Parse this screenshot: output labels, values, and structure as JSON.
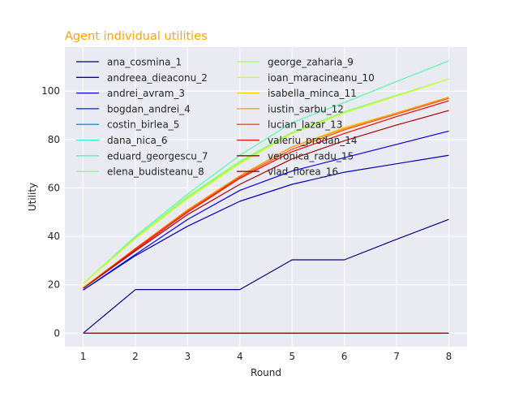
{
  "chart_data": {
    "type": "line",
    "title": "Agent individual utilities",
    "xlabel": "Round",
    "ylabel": "Utility",
    "x": [
      1,
      2,
      3,
      4,
      5,
      6,
      7,
      8
    ],
    "xlim": [
      0.65,
      8.35
    ],
    "ylim": [
      -5.6,
      118.2
    ],
    "xticks": [
      1,
      2,
      3,
      4,
      5,
      6,
      7,
      8
    ],
    "yticks": [
      0,
      20,
      40,
      60,
      80,
      100
    ],
    "grid": true,
    "legend_placement": "top-left",
    "legend_columns": 2,
    "colors": {
      "title": "#ffa500",
      "background": "#eaeaf2",
      "grid": "#ffffff",
      "text": "#262626"
    },
    "series": [
      {
        "name": "ana_cosmina_1",
        "color": "#000080",
        "values": [
          0,
          18,
          18,
          18,
          30.3,
          30.3,
          38.8,
          47
        ]
      },
      {
        "name": "andreea_dieaconu_2",
        "color": "#0000bd",
        "values": [
          17.8,
          32,
          44.2,
          54.5,
          61.5,
          66.5,
          70,
          73.5
        ]
      },
      {
        "name": "andrei_avram_3",
        "color": "#0000f1",
        "values": [
          17.8,
          32.5,
          47,
          59,
          67,
          72.5,
          78,
          83.5
        ]
      },
      {
        "name": "bogdan_andrei_4",
        "color": "#0020ff",
        "values": [
          0,
          0,
          0,
          0,
          0,
          0,
          0,
          0
        ]
      },
      {
        "name": "costin_birlea_5",
        "color": "#0098ff",
        "values": [
          0,
          0,
          0,
          0,
          0,
          0,
          0,
          0
        ]
      },
      {
        "name": "dana_nica_6",
        "color": "#26ffd1",
        "values": [
          0,
          0,
          0,
          0,
          0,
          0,
          0,
          0
        ]
      },
      {
        "name": "eduard_georgescu_7",
        "color": "#4dffaa",
        "values": [
          20.5,
          40,
          57.5,
          73.5,
          87,
          95.3,
          104,
          112.5
        ]
      },
      {
        "name": "elena_budisteanu_8",
        "color": "#7dff7a",
        "values": [
          20.5,
          39.5,
          56.5,
          71,
          83,
          91.5,
          98.3,
          105
        ]
      },
      {
        "name": "george_zaharia_9",
        "color": "#a4ff53",
        "values": [
          20.5,
          39.5,
          56,
          70.5,
          82.5,
          91,
          98,
          105
        ]
      },
      {
        "name": "ioan_maracineanu_10",
        "color": "#d1ff26",
        "values": [
          20.5,
          39,
          55.5,
          70,
          82.5,
          91,
          98,
          105
        ]
      },
      {
        "name": "isabella_minca_11",
        "color": "#ffd000",
        "values": [
          19,
          35,
          51,
          65,
          77,
          85,
          91,
          97.5
        ]
      },
      {
        "name": "iustin_sarbu_12",
        "color": "#ff9400",
        "values": [
          18.5,
          35,
          51,
          65,
          77,
          84.5,
          91,
          97.5
        ]
      },
      {
        "name": "lucian_lazar_13",
        "color": "#ff4800",
        "values": [
          18.5,
          35,
          50.5,
          64.5,
          76,
          84,
          90.5,
          97
        ]
      },
      {
        "name": "valeriu_prodan_14",
        "color": "#f10800",
        "values": [
          18.5,
          34.5,
          50,
          64,
          75,
          82.5,
          89.5,
          96
        ]
      },
      {
        "name": "veronica_radu_15",
        "color": "#a80000",
        "values": [
          18.5,
          34,
          49,
          61.5,
          72,
          79.5,
          86,
          92
        ]
      },
      {
        "name": "vlad_florea_16",
        "color": "#800000",
        "values": [
          0,
          0,
          0,
          0,
          0,
          0,
          0,
          0
        ]
      }
    ]
  }
}
